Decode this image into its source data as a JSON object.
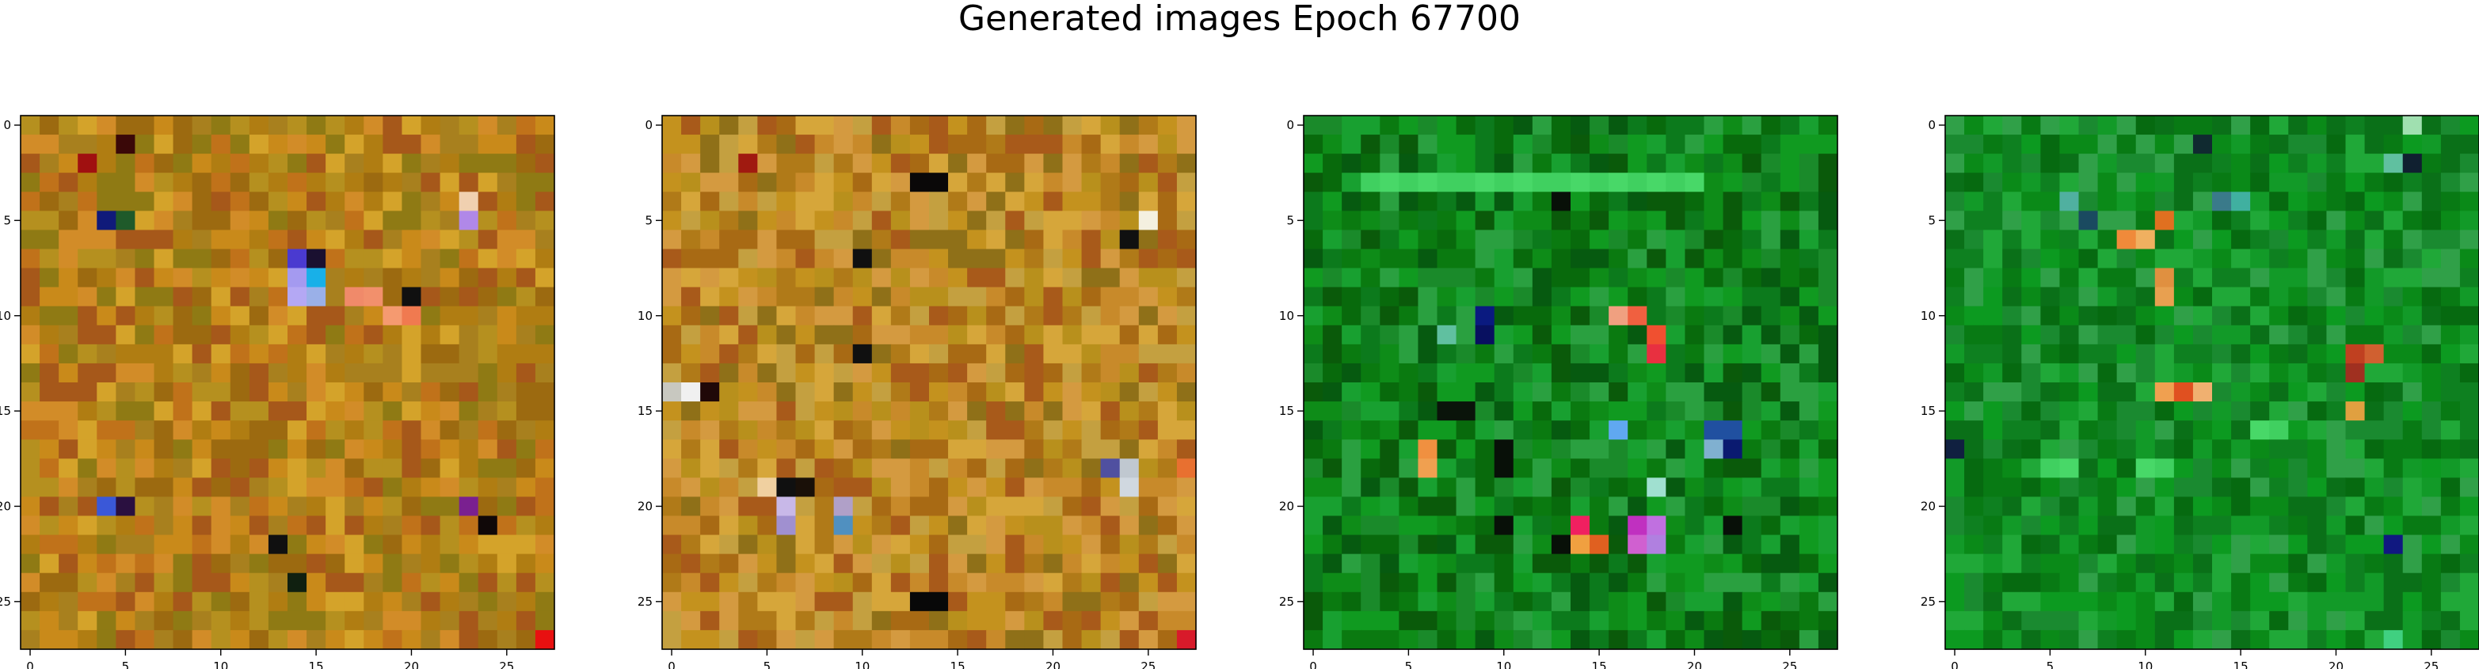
{
  "title": "Generated images Epoch 67700",
  "chart_data": {
    "type": "heatmap",
    "title": "Generated images Epoch 67700",
    "grid_size": [
      28,
      28
    ],
    "xlim": [
      -0.5,
      27.5
    ],
    "ylim": [
      27.5,
      -0.5
    ],
    "x_ticks": [
      0,
      5,
      10,
      15,
      20,
      25
    ],
    "y_ticks": [
      0,
      5,
      10,
      15,
      20,
      25
    ],
    "panels": [
      {
        "name": "image-1",
        "palette": [
          "#b07d12",
          "#c98a1a",
          "#9c6a10",
          "#d4a32a",
          "#a8801e",
          "#c0721a",
          "#8f7a14",
          "#b5901f",
          "#d28c28",
          "#a6581a"
        ],
        "accents": [
          {
            "x": 4,
            "y": 5,
            "color": "#101a7a"
          },
          {
            "x": 5,
            "y": 5,
            "color": "#1f5a2a"
          },
          {
            "x": 14,
            "y": 7,
            "color": "#4a3ad0"
          },
          {
            "x": 15,
            "y": 7,
            "color": "#1a1030"
          },
          {
            "x": 14,
            "y": 8,
            "color": "#a49af0"
          },
          {
            "x": 15,
            "y": 8,
            "color": "#18b0e8"
          },
          {
            "x": 14,
            "y": 9,
            "color": "#b4a8f4"
          },
          {
            "x": 15,
            "y": 9,
            "color": "#9ab0e8"
          },
          {
            "x": 17,
            "y": 9,
            "color": "#f08a6a"
          },
          {
            "x": 18,
            "y": 9,
            "color": "#f2906c"
          },
          {
            "x": 19,
            "y": 10,
            "color": "#f59a70"
          },
          {
            "x": 20,
            "y": 10,
            "color": "#f07a50"
          },
          {
            "x": 23,
            "y": 5,
            "color": "#b088e8"
          },
          {
            "x": 23,
            "y": 4,
            "color": "#f0d0b0"
          },
          {
            "x": 4,
            "y": 20,
            "color": "#3a58d8"
          },
          {
            "x": 5,
            "y": 20,
            "color": "#2a1040"
          },
          {
            "x": 13,
            "y": 22,
            "color": "#101010"
          },
          {
            "x": 14,
            "y": 24,
            "color": "#102010"
          },
          {
            "x": 23,
            "y": 20,
            "color": "#7a2090"
          },
          {
            "x": 24,
            "y": 21,
            "color": "#100808"
          },
          {
            "x": 27,
            "y": 27,
            "color": "#e81010"
          },
          {
            "x": 3,
            "y": 2,
            "color": "#a01010"
          },
          {
            "x": 5,
            "y": 1,
            "color": "#3a0808"
          },
          {
            "x": 20,
            "y": 9,
            "color": "#101010"
          }
        ]
      },
      {
        "name": "image-2",
        "palette": [
          "#c4921e",
          "#b07a18",
          "#d6a63a",
          "#a86a14",
          "#c88a2a",
          "#8f7018",
          "#d49a40",
          "#b8901c",
          "#a85a1a",
          "#c4a040"
        ],
        "accents": [
          {
            "x": 13,
            "y": 3,
            "color": "#0a0808"
          },
          {
            "x": 14,
            "y": 3,
            "color": "#0a0808"
          },
          {
            "x": 25,
            "y": 5,
            "color": "#f4f0e0"
          },
          {
            "x": 24,
            "y": 6,
            "color": "#101010"
          },
          {
            "x": 1,
            "y": 14,
            "color": "#f0f0f0"
          },
          {
            "x": 0,
            "y": 14,
            "color": "#c8c8c0"
          },
          {
            "x": 2,
            "y": 14,
            "color": "#200808"
          },
          {
            "x": 10,
            "y": 7,
            "color": "#101010"
          },
          {
            "x": 10,
            "y": 12,
            "color": "#101010"
          },
          {
            "x": 5,
            "y": 19,
            "color": "#f0d0a0"
          },
          {
            "x": 6,
            "y": 20,
            "color": "#c8b8e8"
          },
          {
            "x": 6,
            "y": 21,
            "color": "#a090d0"
          },
          {
            "x": 9,
            "y": 20,
            "color": "#b0a0c8"
          },
          {
            "x": 9,
            "y": 21,
            "color": "#5090c0"
          },
          {
            "x": 6,
            "y": 19,
            "color": "#101010"
          },
          {
            "x": 7,
            "y": 19,
            "color": "#1a1008"
          },
          {
            "x": 23,
            "y": 18,
            "color": "#5050a0"
          },
          {
            "x": 24,
            "y": 18,
            "color": "#c0c8d0"
          },
          {
            "x": 24,
            "y": 19,
            "color": "#d0d8e0"
          },
          {
            "x": 27,
            "y": 18,
            "color": "#e87030"
          },
          {
            "x": 13,
            "y": 25,
            "color": "#080808"
          },
          {
            "x": 14,
            "y": 25,
            "color": "#080808"
          },
          {
            "x": 27,
            "y": 27,
            "color": "#d81a2a"
          },
          {
            "x": 4,
            "y": 2,
            "color": "#a01a10"
          }
        ]
      },
      {
        "name": "image-3",
        "palette": [
          "#0a7a10",
          "#0e8c18",
          "#086a0c",
          "#109a20",
          "#1a8a2a",
          "#0a5a0a",
          "#18a030",
          "#0c7a1c",
          "#2aa040",
          "#065a10"
        ],
        "accents": [
          {
            "x": 3,
            "y": 3,
            "color": "#40d060"
          },
          {
            "x": 4,
            "y": 3,
            "color": "#48d868"
          },
          {
            "x": 5,
            "y": 3,
            "color": "#40d060"
          },
          {
            "x": 6,
            "y": 3,
            "color": "#48d868"
          },
          {
            "x": 7,
            "y": 3,
            "color": "#40d060"
          },
          {
            "x": 8,
            "y": 3,
            "color": "#40d060"
          },
          {
            "x": 9,
            "y": 3,
            "color": "#48d868"
          },
          {
            "x": 10,
            "y": 3,
            "color": "#40d060"
          },
          {
            "x": 11,
            "y": 3,
            "color": "#48d868"
          },
          {
            "x": 12,
            "y": 3,
            "color": "#40d060"
          },
          {
            "x": 13,
            "y": 3,
            "color": "#40d060"
          },
          {
            "x": 14,
            "y": 3,
            "color": "#48d868"
          },
          {
            "x": 15,
            "y": 3,
            "color": "#40d060"
          },
          {
            "x": 16,
            "y": 3,
            "color": "#48d868"
          },
          {
            "x": 17,
            "y": 3,
            "color": "#40d060"
          },
          {
            "x": 18,
            "y": 3,
            "color": "#48d868"
          },
          {
            "x": 19,
            "y": 3,
            "color": "#40d060"
          },
          {
            "x": 20,
            "y": 3,
            "color": "#48d868"
          },
          {
            "x": 13,
            "y": 4,
            "color": "#081008"
          },
          {
            "x": 9,
            "y": 10,
            "color": "#0a1a80"
          },
          {
            "x": 9,
            "y": 11,
            "color": "#081060"
          },
          {
            "x": 7,
            "y": 11,
            "color": "#60c0a0"
          },
          {
            "x": 16,
            "y": 10,
            "color": "#f0a080"
          },
          {
            "x": 17,
            "y": 10,
            "color": "#f06040"
          },
          {
            "x": 18,
            "y": 11,
            "color": "#f05030"
          },
          {
            "x": 18,
            "y": 12,
            "color": "#e83040"
          },
          {
            "x": 6,
            "y": 17,
            "color": "#f09040"
          },
          {
            "x": 6,
            "y": 18,
            "color": "#f0a050"
          },
          {
            "x": 16,
            "y": 16,
            "color": "#60a8f0"
          },
          {
            "x": 21,
            "y": 16,
            "color": "#2050a0"
          },
          {
            "x": 22,
            "y": 16,
            "color": "#2050a0"
          },
          {
            "x": 21,
            "y": 17,
            "color": "#80b0d0"
          },
          {
            "x": 22,
            "y": 17,
            "color": "#0a1a70"
          },
          {
            "x": 18,
            "y": 19,
            "color": "#a0e0d0"
          },
          {
            "x": 14,
            "y": 21,
            "color": "#f02060"
          },
          {
            "x": 17,
            "y": 21,
            "color": "#c030c0"
          },
          {
            "x": 18,
            "y": 21,
            "color": "#c070e0"
          },
          {
            "x": 14,
            "y": 22,
            "color": "#f0a040"
          },
          {
            "x": 15,
            "y": 22,
            "color": "#e06020"
          },
          {
            "x": 17,
            "y": 22,
            "color": "#d060d0"
          },
          {
            "x": 18,
            "y": 22,
            "color": "#b080e0"
          },
          {
            "x": 10,
            "y": 17,
            "color": "#081008"
          },
          {
            "x": 10,
            "y": 18,
            "color": "#081008"
          },
          {
            "x": 10,
            "y": 21,
            "color": "#081008"
          },
          {
            "x": 13,
            "y": 22,
            "color": "#081008"
          },
          {
            "x": 22,
            "y": 21,
            "color": "#081008"
          },
          {
            "x": 7,
            "y": 15,
            "color": "#0a140a"
          },
          {
            "x": 8,
            "y": 15,
            "color": "#0a140a"
          }
        ]
      },
      {
        "name": "image-4",
        "palette": [
          "#0a8a18",
          "#0c9a20",
          "#087a14",
          "#129a28",
          "#1a8a30",
          "#066a10",
          "#20a838",
          "#0e8020",
          "#30a048",
          "#0a7018"
        ],
        "accents": [
          {
            "x": 24,
            "y": 0,
            "color": "#a0e0b0"
          },
          {
            "x": 24,
            "y": 2,
            "color": "#102030"
          },
          {
            "x": 23,
            "y": 2,
            "color": "#60c0a0"
          },
          {
            "x": 6,
            "y": 4,
            "color": "#50b0a0"
          },
          {
            "x": 7,
            "y": 5,
            "color": "#1a4a60"
          },
          {
            "x": 14,
            "y": 4,
            "color": "#3a7a8a"
          },
          {
            "x": 15,
            "y": 4,
            "color": "#40b0a0"
          },
          {
            "x": 9,
            "y": 6,
            "color": "#f08a3a"
          },
          {
            "x": 10,
            "y": 6,
            "color": "#f0b060"
          },
          {
            "x": 11,
            "y": 5,
            "color": "#e07020"
          },
          {
            "x": 11,
            "y": 8,
            "color": "#e09040"
          },
          {
            "x": 11,
            "y": 9,
            "color": "#e8a050"
          },
          {
            "x": 11,
            "y": 14,
            "color": "#f0a050"
          },
          {
            "x": 12,
            "y": 14,
            "color": "#e05020"
          },
          {
            "x": 13,
            "y": 14,
            "color": "#f0b070"
          },
          {
            "x": 21,
            "y": 12,
            "color": "#c04020"
          },
          {
            "x": 22,
            "y": 12,
            "color": "#d06030"
          },
          {
            "x": 21,
            "y": 13,
            "color": "#a03020"
          },
          {
            "x": 21,
            "y": 15,
            "color": "#e0a040"
          },
          {
            "x": 5,
            "y": 18,
            "color": "#40d060"
          },
          {
            "x": 6,
            "y": 18,
            "color": "#48d868"
          },
          {
            "x": 10,
            "y": 18,
            "color": "#48d868"
          },
          {
            "x": 11,
            "y": 18,
            "color": "#40d060"
          },
          {
            "x": 16,
            "y": 16,
            "color": "#48d868"
          },
          {
            "x": 17,
            "y": 16,
            "color": "#40d060"
          },
          {
            "x": 23,
            "y": 22,
            "color": "#101880"
          },
          {
            "x": 0,
            "y": 17,
            "color": "#102040"
          },
          {
            "x": 13,
            "y": 1,
            "color": "#102a30"
          },
          {
            "x": 23,
            "y": 27,
            "color": "#40d080"
          }
        ]
      }
    ]
  }
}
